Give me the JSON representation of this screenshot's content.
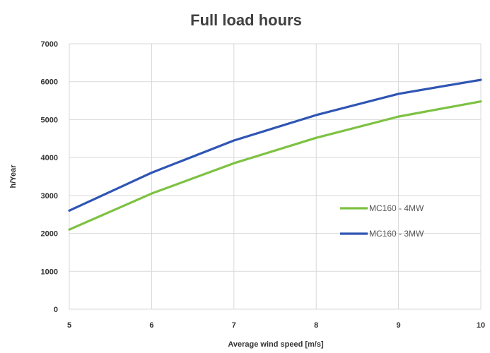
{
  "chart_data": {
    "type": "line",
    "title": "Full load hours",
    "xlabel": "Average wind speed [m/s]",
    "ylabel": "h/Year",
    "x": [
      5,
      6,
      7,
      8,
      9,
      10
    ],
    "xlim": [
      5,
      10
    ],
    "ylim": [
      0,
      7000
    ],
    "xticks": [
      "5",
      "6",
      "7",
      "8",
      "9",
      "10"
    ],
    "yticks": [
      "0",
      "1000",
      "2000",
      "3000",
      "4000",
      "5000",
      "6000",
      "7000"
    ],
    "grid": true,
    "legend_position": "right",
    "series": [
      {
        "name": "MC160 - 4MW",
        "color": "#7dc242",
        "values": [
          2100,
          3050,
          3850,
          4520,
          5080,
          5480
        ]
      },
      {
        "name": "MC160 - 3MW",
        "color": "#2f55b4",
        "values": [
          2600,
          3600,
          4450,
          5120,
          5680,
          6050
        ]
      }
    ]
  }
}
